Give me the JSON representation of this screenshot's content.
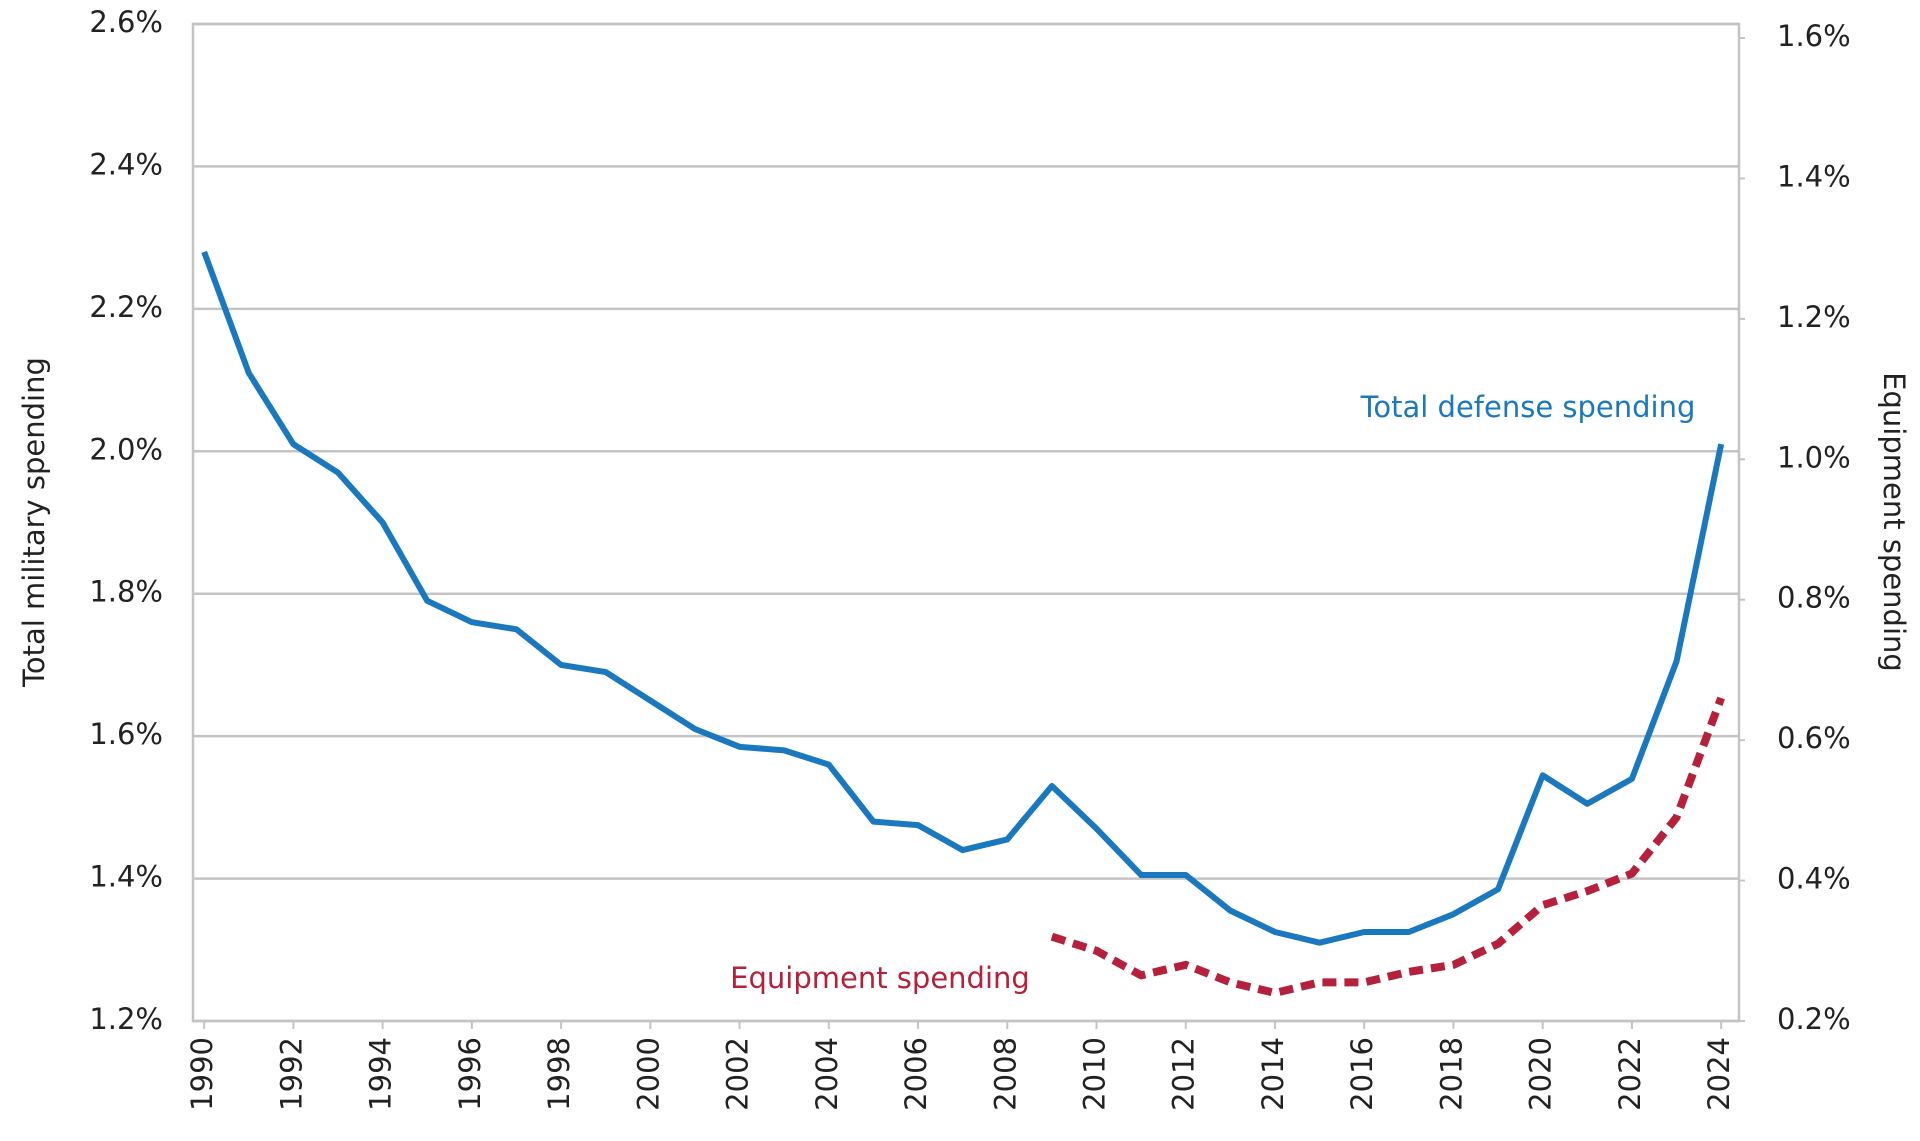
{
  "chart_data": {
    "type": "line",
    "ylabel": "Total military spending",
    "y2label": "Equipment spending",
    "x": [
      1990,
      1991,
      1992,
      1993,
      1994,
      1995,
      1996,
      1997,
      1998,
      1999,
      2000,
      2001,
      2002,
      2003,
      2004,
      2005,
      2006,
      2007,
      2008,
      2009,
      2010,
      2011,
      2012,
      2013,
      2014,
      2015,
      2016,
      2017,
      2018,
      2019,
      2020,
      2021,
      2022,
      2023,
      2024
    ],
    "xlim": [
      1989.75,
      2024.4
    ],
    "xticks": [
      1990,
      1992,
      1994,
      1996,
      1998,
      2000,
      2002,
      2004,
      2006,
      2008,
      2010,
      2012,
      2014,
      2016,
      2018,
      2020,
      2022,
      2024
    ],
    "ylim": [
      1.2,
      2.6
    ],
    "yticks": [
      {
        "value": 1.2,
        "label": "1.2%"
      },
      {
        "value": 1.4,
        "label": "1.4%"
      },
      {
        "value": 1.6,
        "label": "1.6%"
      },
      {
        "value": 1.8,
        "label": "1.8%"
      },
      {
        "value": 2.0,
        "label": "2.0%"
      },
      {
        "value": 2.2,
        "label": "2.2%"
      },
      {
        "value": 2.4,
        "label": "2.4%"
      },
      {
        "value": 2.6,
        "label": "2.6%"
      }
    ],
    "y2lim": [
      0.2,
      1.62
    ],
    "y2ticks": [
      {
        "value": 0.2,
        "label": "0.2%"
      },
      {
        "value": 0.4,
        "label": "0.4%"
      },
      {
        "value": 0.6,
        "label": "0.6%"
      },
      {
        "value": 0.8,
        "label": "0.8%"
      },
      {
        "value": 1.0,
        "label": "1.0%"
      },
      {
        "value": 1.2,
        "label": "1.2%"
      },
      {
        "value": 1.4,
        "label": "1.4%"
      },
      {
        "value": 1.6,
        "label": "1.6%"
      }
    ],
    "grid": true,
    "series": [
      {
        "name": "Total defense spending",
        "color": "#1a78be",
        "style": "solid",
        "values": [
          2.28,
          2.11,
          2.01,
          1.97,
          1.9,
          1.79,
          1.76,
          1.75,
          1.7,
          1.69,
          1.65,
          1.61,
          1.585,
          1.58,
          1.56,
          1.48,
          1.475,
          1.44,
          1.455,
          1.53,
          1.47,
          1.405,
          1.405,
          1.355,
          1.325,
          1.31,
          1.325,
          1.325,
          1.35,
          1.385,
          1.545,
          1.505,
          1.54,
          1.705,
          2.01
        ]
      },
      {
        "name": "Equipment spending",
        "color": "#b5213a",
        "style": "dashed",
        "axis": "y2",
        "values": [
          null,
          null,
          null,
          null,
          null,
          null,
          null,
          null,
          null,
          null,
          null,
          null,
          null,
          null,
          null,
          null,
          null,
          null,
          null,
          0.32,
          0.3,
          0.265,
          0.28,
          0.255,
          0.24,
          0.255,
          0.255,
          0.27,
          0.28,
          0.31,
          0.365,
          0.385,
          0.41,
          0.49,
          0.66
        ]
      }
    ]
  }
}
